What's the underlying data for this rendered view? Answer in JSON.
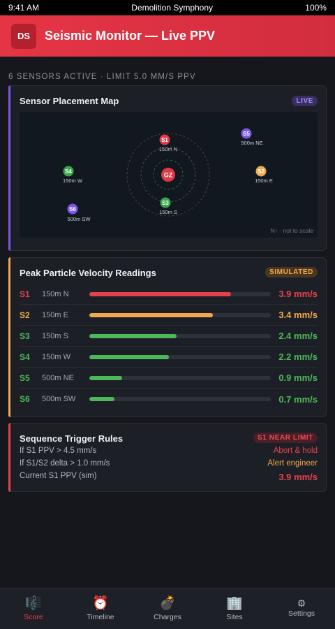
{
  "status_bar": {
    "time": "9:41 AM",
    "app_name": "Demolition Symphony",
    "battery": "100%"
  },
  "header": {
    "logo": "DS",
    "title": "Seismic Monitor — Live PPV"
  },
  "subheading": "6 SENSORS ACTIVE · LIMIT 5.0 MM/S PPV",
  "map_card": {
    "title": "Sensor Placement Map",
    "badge": "LIVE",
    "center_label": "GZ",
    "note": "N↑ · not to scale",
    "sensors": [
      {
        "id": "S1",
        "label": "150m N",
        "color": "#e03a48"
      },
      {
        "id": "S5",
        "label": "500m NE",
        "color": "#7b57e6"
      },
      {
        "id": "S4",
        "label": "150m W",
        "color": "#3aa64a"
      },
      {
        "id": "S2",
        "label": "150m E",
        "color": "#f2a94c"
      },
      {
        "id": "S3",
        "label": "150m S",
        "color": "#3aa64a"
      },
      {
        "id": "S6",
        "label": "500m SW",
        "color": "#7b57e6"
      }
    ]
  },
  "ppv_card": {
    "title": "Peak Particle Velocity Readings",
    "badge": "SIMULATED",
    "readings": [
      {
        "id": "S1",
        "location": "150m N",
        "value": "3.9 mm/s",
        "level": 0.78,
        "color": "#e8404d"
      },
      {
        "id": "S2",
        "location": "150m E",
        "value": "3.4 mm/s",
        "level": 0.68,
        "color": "#f2a94c"
      },
      {
        "id": "S3",
        "location": "150m S",
        "value": "2.4 mm/s",
        "level": 0.48,
        "color": "#4db85a"
      },
      {
        "id": "S4",
        "location": "150m W",
        "value": "2.2 mm/s",
        "level": 0.44,
        "color": "#4db85a"
      },
      {
        "id": "S5",
        "location": "500m NE",
        "value": "0.9 mm/s",
        "level": 0.18,
        "color": "#4db85a"
      },
      {
        "id": "S6",
        "location": "500m SW",
        "value": "0.7 mm/s",
        "level": 0.14,
        "color": "#4db85a"
      }
    ]
  },
  "rules_card": {
    "title": "Sequence Trigger Rules",
    "badge": "S1 NEAR LIMIT",
    "rules": [
      {
        "condition": "If S1 PPV > 4.5 mm/s",
        "action": "Abort & hold",
        "color": "#e8404d"
      },
      {
        "condition": "If S1/S2 delta > 1.0 mm/s",
        "action": "Alert engineer",
        "color": "#f2a94c"
      },
      {
        "condition": "Current S1 PPV (sim)",
        "action": "3.9 mm/s",
        "color": "#e8404d"
      }
    ]
  },
  "tab_bar": [
    {
      "label": "Score",
      "icon": "score-icon",
      "glyph": "🎼"
    },
    {
      "label": "Timeline",
      "icon": "alarm-clock-icon",
      "glyph": "⏰"
    },
    {
      "label": "Charges",
      "icon": "bomb-icon",
      "glyph": "💣"
    },
    {
      "label": "Sites",
      "icon": "building-icon",
      "glyph": "🏢"
    },
    {
      "label": "Settings",
      "icon": "gear-icon",
      "glyph": "⚙"
    }
  ],
  "colors": {
    "accent": "#e53545",
    "live": "#7b57e6",
    "simulated": "#f2a94c",
    "rules": "#e8404d",
    "safe": "#4db85a"
  }
}
